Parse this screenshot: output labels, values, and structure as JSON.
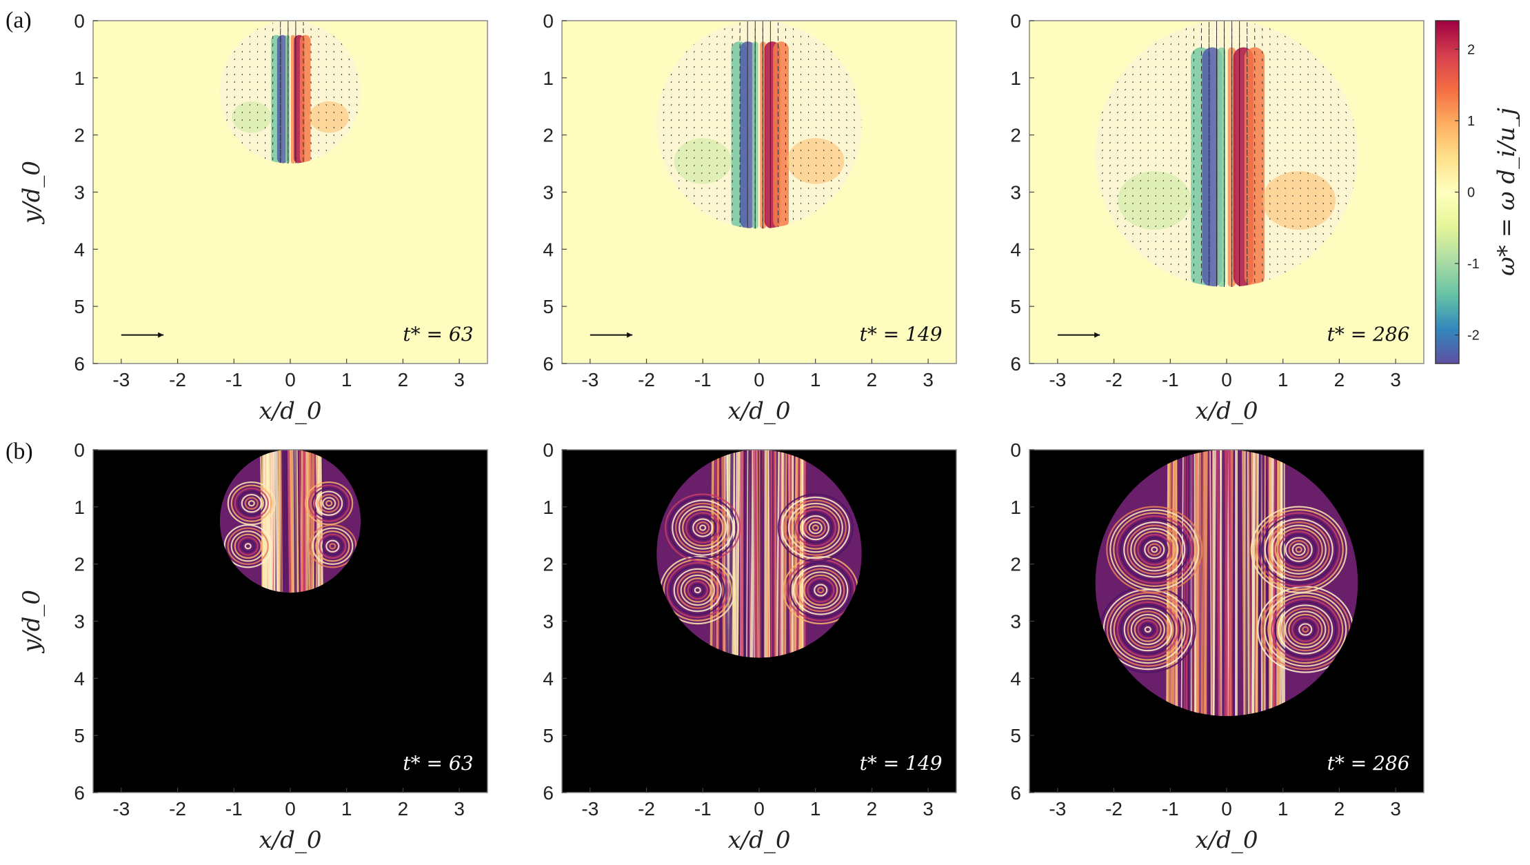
{
  "panel_labels": [
    "(a)",
    "(b)"
  ],
  "colorbar": {
    "label": "ω* = ω d_i/u_j",
    "ticks": [
      "2",
      "1",
      "0",
      "-1",
      "-2"
    ],
    "tick_values": [
      2,
      1,
      0,
      -1,
      -2
    ],
    "range": [
      -2.4,
      2.4
    ],
    "colormap": [
      "#5e4fa2",
      "#3288bd",
      "#66c2a5",
      "#abdda4",
      "#e6f598",
      "#ffffbf",
      "#fee08b",
      "#fdae61",
      "#f46d43",
      "#d53e4f",
      "#9e0142"
    ]
  },
  "chart_data": [
    {
      "type": "heatmap",
      "row": "a",
      "xlabel": "x/d_0",
      "ylabel": "y/d_0",
      "xlim": [
        -3.5,
        3.5
      ],
      "ylim": [
        6,
        0
      ],
      "xticks": [
        "-3",
        "-2",
        "-1",
        "0",
        "1",
        "2",
        "3"
      ],
      "yticks": [
        "0",
        "1",
        "2",
        "3",
        "4",
        "5",
        "6"
      ],
      "annotation": "t* = 63",
      "t_star": 63,
      "bubble": {
        "cx": 0,
        "cy": 1.25,
        "r": 1.25
      },
      "arrow_scale": true
    },
    {
      "type": "heatmap",
      "row": "a",
      "xlabel": "x/d_0",
      "ylabel": "",
      "xlim": [
        -3.5,
        3.5
      ],
      "ylim": [
        6,
        0
      ],
      "xticks": [
        "-3",
        "-2",
        "-1",
        "0",
        "1",
        "2",
        "3"
      ],
      "yticks": [
        "0",
        "1",
        "2",
        "3",
        "4",
        "5",
        "6"
      ],
      "annotation": "t* = 149",
      "t_star": 149,
      "bubble": {
        "cx": 0,
        "cy": 1.82,
        "r": 1.82
      },
      "arrow_scale": true
    },
    {
      "type": "heatmap",
      "row": "a",
      "xlabel": "x/d_0",
      "ylabel": "",
      "xlim": [
        -3.5,
        3.5
      ],
      "ylim": [
        6,
        0
      ],
      "xticks": [
        "-3",
        "-2",
        "-1",
        "0",
        "1",
        "2",
        "3"
      ],
      "yticks": [
        "0",
        "1",
        "2",
        "3",
        "4",
        "5",
        "6"
      ],
      "annotation": "t* = 286",
      "t_star": 286,
      "bubble": {
        "cx": 0,
        "cy": 2.33,
        "r": 2.33
      },
      "arrow_scale": true
    },
    {
      "type": "heatmap",
      "row": "b",
      "xlabel": "x/d_0",
      "ylabel": "y/d_0",
      "xlim": [
        -3.5,
        3.5
      ],
      "ylim": [
        6,
        0
      ],
      "xticks": [
        "-3",
        "-2",
        "-1",
        "0",
        "1",
        "2",
        "3"
      ],
      "yticks": [
        "0",
        "1",
        "2",
        "3",
        "4",
        "5",
        "6"
      ],
      "annotation": "t* = 63",
      "t_star": 63,
      "bubble": {
        "cx": 0,
        "cy": 1.25,
        "r": 1.25
      }
    },
    {
      "type": "heatmap",
      "row": "b",
      "xlabel": "x/d_0",
      "ylabel": "",
      "xlim": [
        -3.5,
        3.5
      ],
      "ylim": [
        6,
        0
      ],
      "xticks": [
        "-3",
        "-2",
        "-1",
        "0",
        "1",
        "2",
        "3"
      ],
      "yticks": [
        "0",
        "1",
        "2",
        "3",
        "4",
        "5",
        "6"
      ],
      "annotation": "t* = 149",
      "t_star": 149,
      "bubble": {
        "cx": 0,
        "cy": 1.82,
        "r": 1.82
      }
    },
    {
      "type": "heatmap",
      "row": "b",
      "xlabel": "x/d_0",
      "ylabel": "",
      "xlim": [
        -3.5,
        3.5
      ],
      "ylim": [
        6,
        0
      ],
      "xticks": [
        "-3",
        "-2",
        "-1",
        "0",
        "1",
        "2",
        "3"
      ],
      "yticks": [
        "0",
        "1",
        "2",
        "3",
        "4",
        "5",
        "6"
      ],
      "annotation": "t* = 286",
      "t_star": 286,
      "bubble": {
        "cx": 0,
        "cy": 2.33,
        "r": 2.33
      }
    }
  ]
}
